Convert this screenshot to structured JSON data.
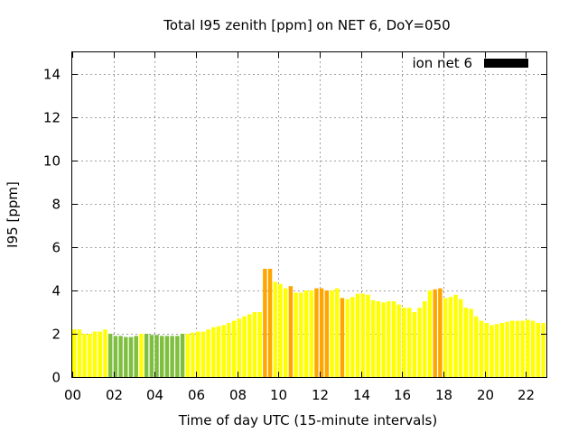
{
  "chart_data": {
    "type": "bar",
    "title": "Total I95 zenith [ppm] on NET 6, DoY=050",
    "xlabel": "Time of day UTC (15-minute intervals)",
    "ylabel": "I95 [ppm]",
    "ylim": [
      0,
      15
    ],
    "xlim": [
      0,
      23
    ],
    "yticks": [
      "0",
      "2",
      "4",
      "6",
      "8",
      "10",
      "12",
      "14"
    ],
    "xticks": [
      "00",
      "02",
      "04",
      "06",
      "08",
      "10",
      "12",
      "14",
      "16",
      "18",
      "20",
      "22"
    ],
    "grid": true,
    "legend": {
      "label": "ion net 6",
      "color": "#000000",
      "placement": "top-right"
    },
    "bar_colors": {
      "low": "#7fbf3f",
      "normal": "#ffff00",
      "elevated": "#ffa500"
    },
    "interval_hours": 0.25,
    "values": [
      2.2,
      2.2,
      2.0,
      2.0,
      2.1,
      2.1,
      2.2,
      2.0,
      1.9,
      1.9,
      1.85,
      1.85,
      1.9,
      2.0,
      2.0,
      1.95,
      1.95,
      1.9,
      1.9,
      1.9,
      1.9,
      2.0,
      2.0,
      2.05,
      2.1,
      2.1,
      2.2,
      2.3,
      2.35,
      2.4,
      2.5,
      2.6,
      2.7,
      2.8,
      2.9,
      3.0,
      3.0,
      5.0,
      5.0,
      4.4,
      4.3,
      4.1,
      4.2,
      3.9,
      3.9,
      4.0,
      4.0,
      4.1,
      4.1,
      4.0,
      4.0,
      4.1,
      3.65,
      3.6,
      3.7,
      3.85,
      3.85,
      3.8,
      3.55,
      3.5,
      3.45,
      3.5,
      3.5,
      3.35,
      3.2,
      3.2,
      3.0,
      3.2,
      3.5,
      4.0,
      4.05,
      4.1,
      3.65,
      3.7,
      3.8,
      3.6,
      3.2,
      3.15,
      2.8,
      2.6,
      2.5,
      2.4,
      2.45,
      2.5,
      2.55,
      2.6,
      2.6,
      2.6,
      2.65,
      2.6,
      2.5,
      2.5,
      2.55
    ],
    "categories_color": [
      "normal",
      "normal",
      "normal",
      "normal",
      "normal",
      "normal",
      "normal",
      "low",
      "low",
      "low",
      "low",
      "low",
      "low",
      "normal",
      "low",
      "low",
      "low",
      "low",
      "low",
      "low",
      "low",
      "low",
      "normal",
      "normal",
      "normal",
      "normal",
      "normal",
      "normal",
      "normal",
      "normal",
      "normal",
      "normal",
      "normal",
      "normal",
      "normal",
      "normal",
      "normal",
      "elevated",
      "elevated",
      "normal",
      "normal",
      "normal",
      "elevated",
      "normal",
      "normal",
      "normal",
      "normal",
      "elevated",
      "elevated",
      "elevated",
      "normal",
      "normal",
      "elevated",
      "normal",
      "normal",
      "normal",
      "normal",
      "normal",
      "normal",
      "normal",
      "normal",
      "normal",
      "normal",
      "normal",
      "normal",
      "normal",
      "normal",
      "normal",
      "normal",
      "normal",
      "elevated",
      "elevated",
      "normal",
      "normal",
      "normal",
      "normal",
      "normal",
      "normal",
      "normal",
      "normal",
      "normal",
      "normal",
      "normal",
      "normal",
      "normal",
      "normal",
      "normal",
      "normal",
      "normal",
      "normal",
      "normal",
      "normal",
      "normal"
    ]
  }
}
